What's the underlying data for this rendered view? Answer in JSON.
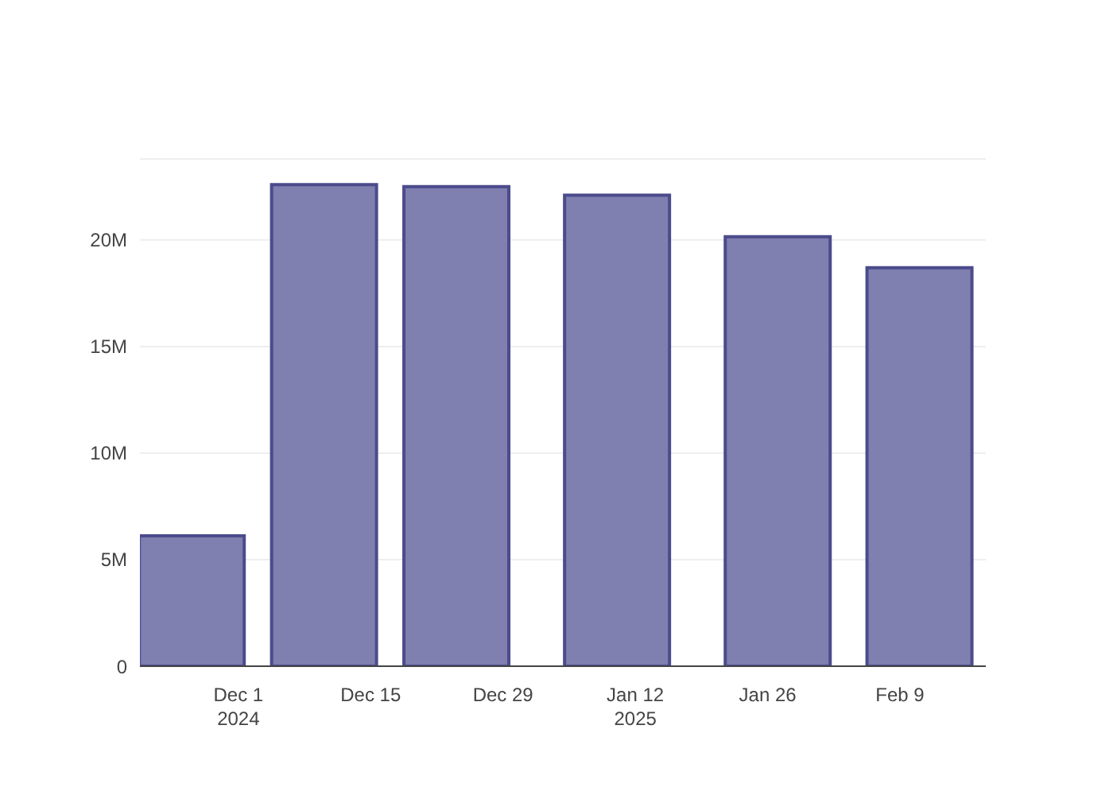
{
  "chart_data": {
    "type": "bar",
    "x": [
      "2024-11-26",
      "2024-12-10",
      "2024-12-24",
      "2025-01-10",
      "2025-01-27",
      "2025-02-11"
    ],
    "values": [
      6120000,
      22600000,
      22500000,
      22100000,
      20150000,
      18700000
    ],
    "color": "#7f7fb0",
    "xlim": [
      "2024-11-20T14:00",
      "2025-02-18T02:00"
    ],
    "xticks": [
      {
        "value": "2024-12-01",
        "label": "Dec 1\n2024"
      },
      {
        "value": "2024-12-15",
        "label": "Dec 15"
      },
      {
        "value": "2024-12-29",
        "label": "Dec 29"
      },
      {
        "value": "2025-01-12",
        "label": "Jan 12\n2025"
      },
      {
        "value": "2025-01-26",
        "label": "Jan 26"
      },
      {
        "value": "2025-02-09",
        "label": "Feb 9"
      }
    ],
    "ylim": [
      0,
      23800000
    ],
    "yticks": [
      0,
      {
        "value": 5000000,
        "label": "5M"
      },
      {
        "value": 10000000,
        "label": "10M"
      },
      {
        "value": 15000000,
        "label": "15M"
      },
      {
        "value": 20000000,
        "label": "20M"
      }
    ],
    "grid": "y"
  }
}
